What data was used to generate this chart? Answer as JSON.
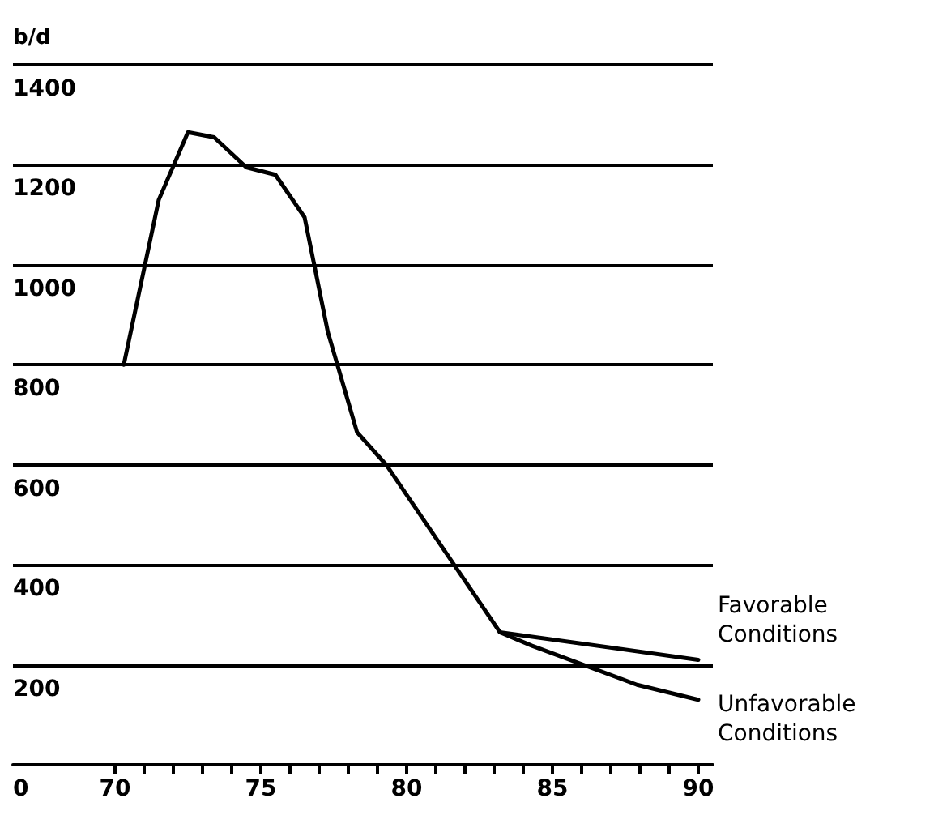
{
  "chart_data": {
    "type": "line",
    "ylabel": "b/d",
    "xlim": [
      66.5,
      90.5
    ],
    "ylim": [
      0,
      1400
    ],
    "xticks": [
      {
        "value": 70,
        "label": "70"
      },
      {
        "value": 71,
        "label": null
      },
      {
        "value": 72,
        "label": null
      },
      {
        "value": 73,
        "label": null
      },
      {
        "value": 74,
        "label": null
      },
      {
        "value": 75,
        "label": "75"
      },
      {
        "value": 76,
        "label": null
      },
      {
        "value": 77,
        "label": null
      },
      {
        "value": 78,
        "label": null
      },
      {
        "value": 79,
        "label": null
      },
      {
        "value": 80,
        "label": "80"
      },
      {
        "value": 81,
        "label": null
      },
      {
        "value": 82,
        "label": null
      },
      {
        "value": 83,
        "label": null
      },
      {
        "value": 84,
        "label": null
      },
      {
        "value": 85,
        "label": "85"
      },
      {
        "value": 86,
        "label": null
      },
      {
        "value": 87,
        "label": null
      },
      {
        "value": 88,
        "label": null
      },
      {
        "value": 89,
        "label": null
      },
      {
        "value": 90,
        "label": "90"
      }
    ],
    "yticks": [
      0,
      200,
      400,
      600,
      800,
      1000,
      1200,
      1400
    ],
    "grid": "y",
    "legend": false,
    "marker": "none",
    "line_style": "solid",
    "series": [
      {
        "color": "#000000",
        "x": [
          70.3,
          71.5,
          72.5,
          73.4,
          74.5,
          75.5,
          76.5,
          77.3,
          78.3,
          79.3,
          83.2
        ],
        "values": [
          800,
          1130,
          1265,
          1255,
          1195,
          1180,
          1095,
          865,
          665,
          600,
          265
        ]
      },
      {
        "name": "Favorable Conditions",
        "color": "#000000",
        "x": [
          83.2,
          90
        ],
        "values": [
          265,
          210
        ]
      },
      {
        "name": "Unfavorable Conditions",
        "color": "#000000",
        "x": [
          83.2,
          84.3,
          87.9,
          90
        ],
        "values": [
          265,
          238,
          160,
          130
        ]
      }
    ]
  }
}
